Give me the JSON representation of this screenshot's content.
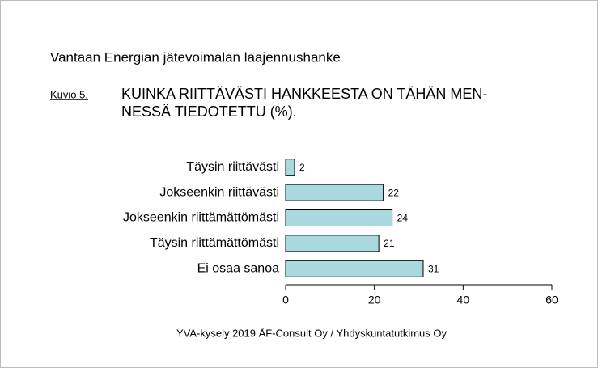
{
  "chart_data": {
    "type": "barh",
    "header": "Vantaan Energian jätevoimalan laajennushanke",
    "figure_label": "Kuvio 5.",
    "title": [
      "KUINKA RIITTÄVÄSTI HANKKEESTA ON TÄHÄN MEN-",
      "NESSÄ TIEDOTETTU (%)."
    ],
    "categories": [
      "Täysin riittävästi",
      "Jokseenkin riittävästi",
      "Jokseenkin riittämättömästi",
      "Täysin riittämättömästi",
      "Ei osaa sanoa"
    ],
    "values": [
      2,
      22,
      24,
      21,
      31
    ],
    "color": "#a9d8df",
    "xlim": [
      0,
      60
    ],
    "xticks": [
      0,
      20,
      40,
      60
    ],
    "source": "YVA-kysely 2019 ÅF-Consult Oy / Yhdyskuntatutkimus Oy"
  }
}
